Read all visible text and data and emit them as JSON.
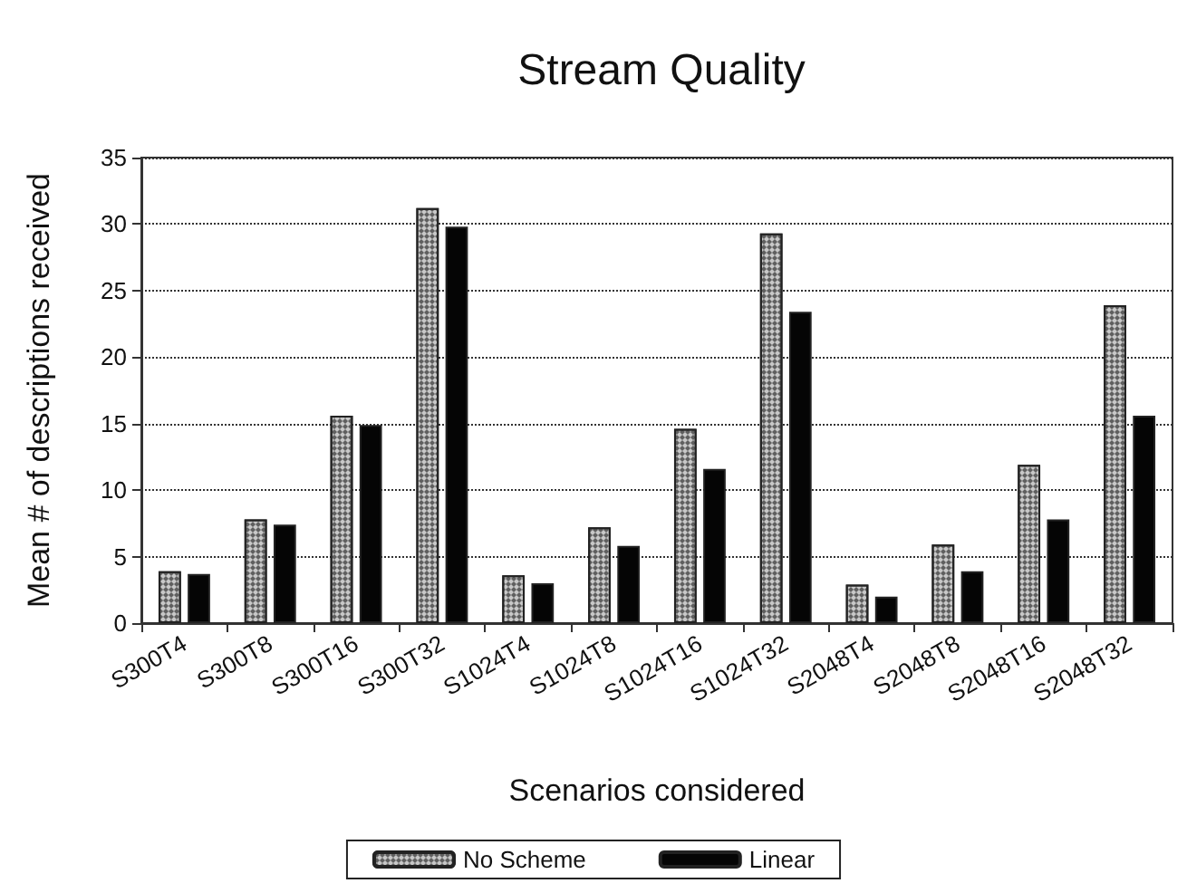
{
  "chart_data": {
    "type": "bar",
    "title": "Stream Quality",
    "xlabel": "Scenarios considered",
    "ylabel": "Mean # of descriptions received",
    "categories": [
      "S300T4",
      "S300T8",
      "S300T16",
      "S300T32",
      "S1024T4",
      "S1024T8",
      "S1024T16",
      "S1024T32",
      "S2048T4",
      "S2048T8",
      "S2048T16",
      "S2048T32"
    ],
    "series": [
      {
        "name": "No Scheme",
        "color": "#c8c8c8",
        "values": [
          3.9,
          7.8,
          15.6,
          31.2,
          3.6,
          7.2,
          14.6,
          29.3,
          2.9,
          5.9,
          11.9,
          23.9
        ]
      },
      {
        "name": "Linear",
        "color": "#050505",
        "values": [
          3.7,
          7.4,
          14.9,
          29.8,
          3.0,
          5.8,
          11.6,
          23.4,
          2.0,
          3.9,
          7.8,
          15.6
        ]
      }
    ],
    "ylim": [
      0,
      35
    ],
    "yticks": [
      0,
      5,
      10,
      15,
      20,
      25,
      30,
      35
    ],
    "grid": "y",
    "legend": "bottom"
  }
}
